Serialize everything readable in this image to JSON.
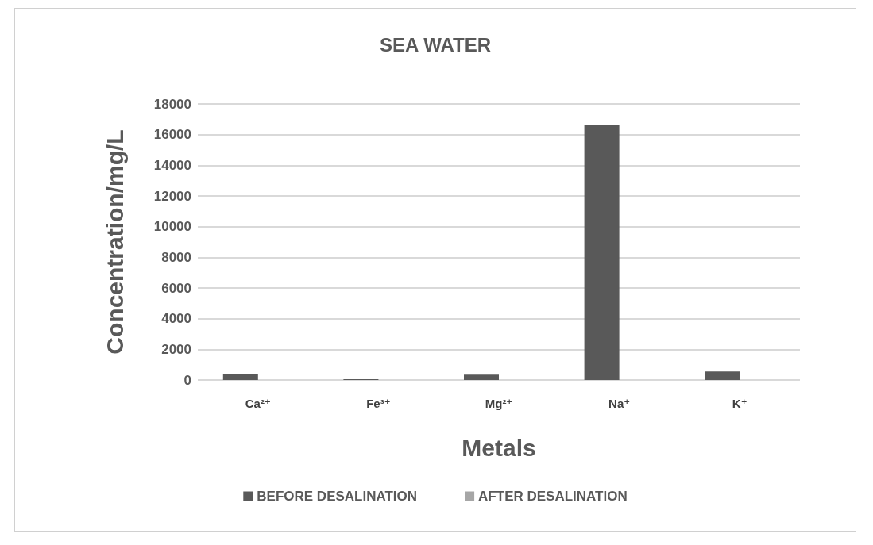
{
  "chart_data": {
    "type": "bar",
    "title": "SEA WATER",
    "xlabel": "Metals",
    "ylabel": "Concentration/mg/L",
    "categories": [
      "Ca²⁺",
      "Fe³⁺",
      "Mg²⁺",
      "Na⁺",
      "K⁺"
    ],
    "series": [
      {
        "name": "BEFORE DESALINATION",
        "color": "#595959",
        "values": [
          400,
          50,
          350,
          16600,
          550
        ]
      },
      {
        "name": "AFTER DESALINATION",
        "color": "#a6a6a6",
        "values": [
          0,
          0,
          0,
          0,
          0
        ]
      }
    ],
    "ylim": [
      0,
      18000
    ],
    "yticks": [
      0,
      2000,
      4000,
      6000,
      8000,
      10000,
      12000,
      14000,
      16000,
      18000
    ],
    "grid": "y",
    "legend": "bottom"
  }
}
